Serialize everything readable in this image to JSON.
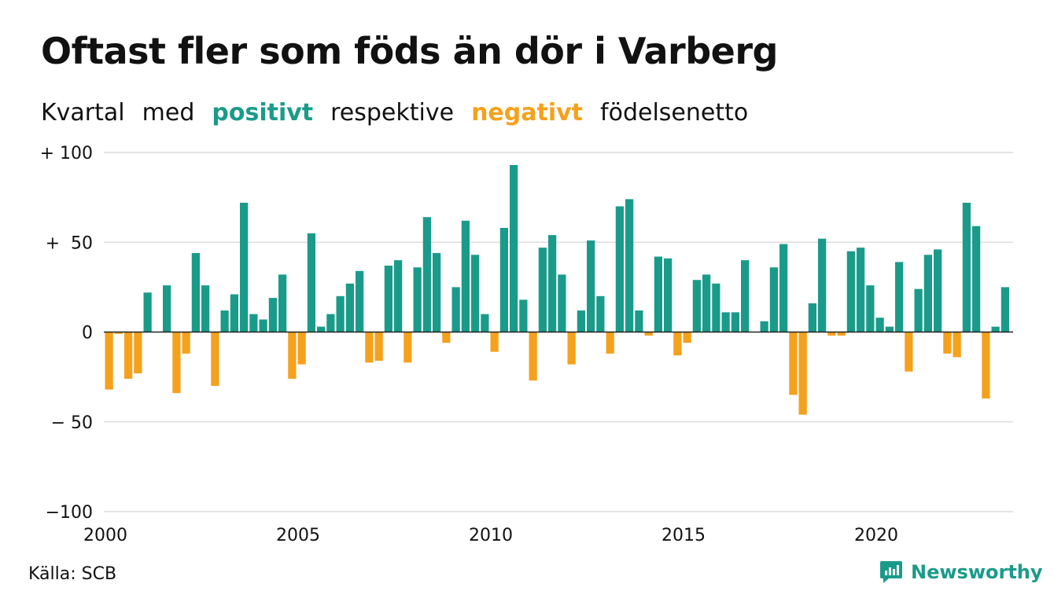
{
  "title": "Oftast fler som föds än dör i Varberg",
  "subtitle": {
    "w1": "Kvartal",
    "w2": "med",
    "positive": "positivt",
    "w3": "respektive",
    "negative": "negativt",
    "w4": "födelsenetto"
  },
  "source": "Källa: SCB",
  "brand": "Newsworthy",
  "colors": {
    "positive": "#1a9b8a",
    "negative": "#f5a11c",
    "grid": "#dcdcdc",
    "zero": "#222222"
  },
  "chart_data": {
    "type": "bar",
    "title": "Oftast fler som föds än dör i Varberg",
    "subtitle": "Kvartal med positivt respektive negativt födelsenetto",
    "xlabel": "",
    "ylabel": "",
    "ylim": [
      -100,
      100
    ],
    "start_year": 2000,
    "x_ticks": [
      2000,
      2005,
      2010,
      2015,
      2020
    ],
    "y_ticks": [
      {
        "value": 100,
        "label": "+ 100"
      },
      {
        "value": 50,
        "label": "+  50"
      },
      {
        "value": 0,
        "label": "0"
      },
      {
        "value": -50,
        "label": "− 50"
      },
      {
        "value": -100,
        "label": "−100"
      }
    ],
    "values": [
      -32,
      -1,
      -26,
      -23,
      22,
      0,
      26,
      -34,
      -12,
      44,
      26,
      -30,
      12,
      21,
      72,
      10,
      7,
      19,
      32,
      -26,
      -18,
      55,
      3,
      10,
      20,
      27,
      34,
      -17,
      -16,
      37,
      40,
      -17,
      36,
      64,
      44,
      -6,
      25,
      62,
      43,
      10,
      -11,
      58,
      93,
      18,
      -27,
      47,
      54,
      32,
      -18,
      12,
      51,
      20,
      -12,
      70,
      74,
      12,
      -2,
      42,
      41,
      -13,
      -6,
      29,
      32,
      27,
      11,
      11,
      40,
      0,
      6,
      36,
      49,
      -35,
      -46,
      16,
      52,
      -2,
      -2,
      45,
      47,
      26,
      8,
      3,
      39,
      -22,
      24,
      43,
      46,
      -12,
      -14,
      72,
      59,
      -37,
      3,
      25
    ]
  }
}
